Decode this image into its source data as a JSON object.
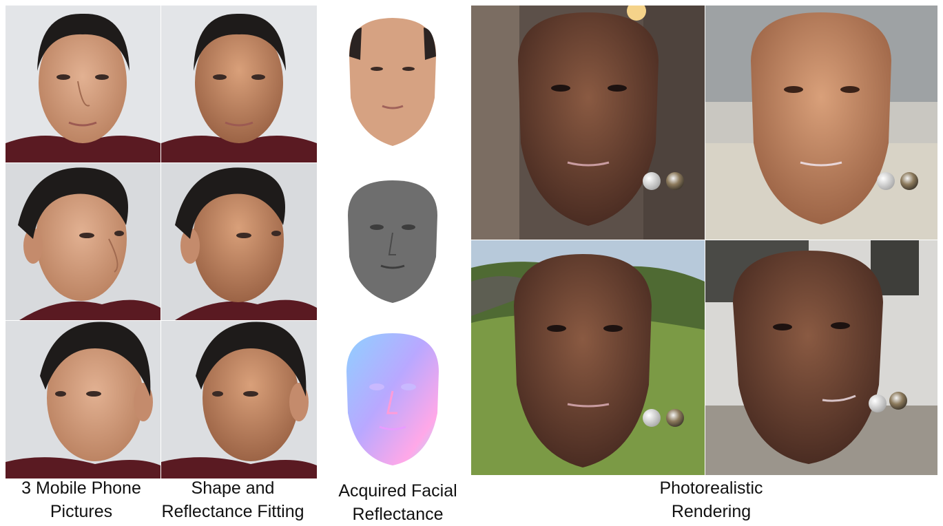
{
  "captions": {
    "col1": [
      "3 Mobile Phone",
      "Pictures"
    ],
    "col2": [
      "Shape and",
      "Reflectance Fitting"
    ],
    "col3": [
      "Acquired Facial",
      "Reflectance"
    ],
    "col4": [
      "Photorealistic",
      "Rendering"
    ]
  },
  "colors": {
    "background": "#ffffff",
    "skin": "#d6a282",
    "hair": "#1e1b1a",
    "shirt": "#5a1a22"
  },
  "images": [
    "photo-frontal",
    "fit-frontal",
    "photo-left",
    "fit-left",
    "photo-right",
    "fit-right",
    "albedo-map",
    "specular-map",
    "normal-map",
    "render-indoor",
    "render-plaza",
    "render-hills",
    "render-street"
  ]
}
